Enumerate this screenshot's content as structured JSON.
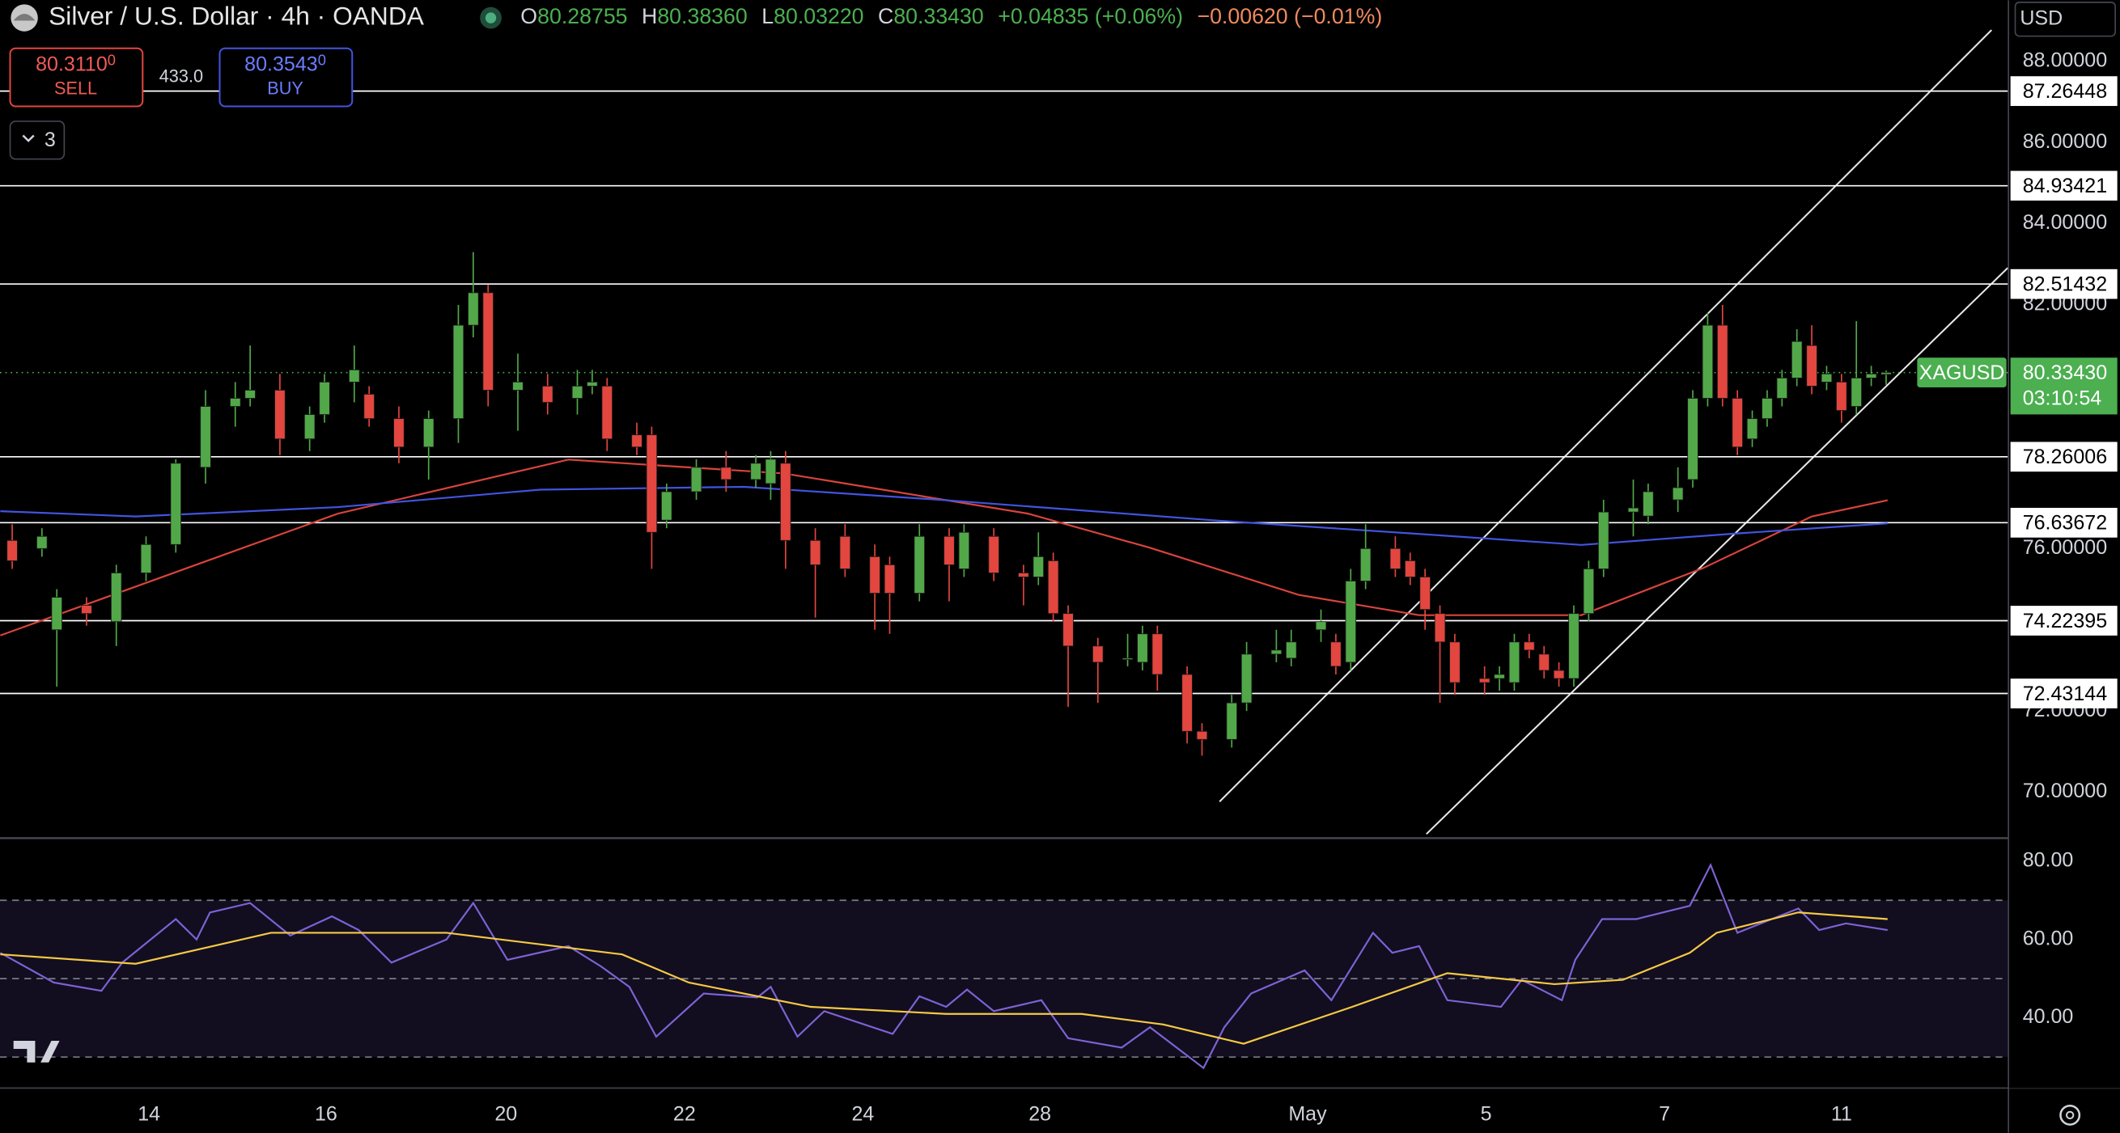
{
  "header": {
    "symbol": "Silver / U.S. Dollar · 4h · OANDA",
    "open_label": "O",
    "open": "80.28755",
    "high_label": "H",
    "high": "80.38360",
    "low_label": "L",
    "low": "80.03220",
    "close_label": "C",
    "close": "80.33430",
    "change": "+0.04835 (+0.06%)",
    "change2": "−0.00620 (−0.01%)"
  },
  "trade": {
    "sell_price": "80.3110",
    "sell_price_small": "0",
    "sell_label": "SELL",
    "spread": "433.0",
    "buy_price": "80.3543",
    "buy_price_small": "0",
    "buy_label": "BUY"
  },
  "indicators_count": "3",
  "currency": "USD",
  "chart_data": [
    {
      "type": "candlestick",
      "x": [
        0,
        2,
        3,
        5,
        7,
        9,
        11,
        13,
        15,
        16,
        18,
        20,
        21,
        23,
        24,
        26,
        28,
        30,
        31,
        32,
        34,
        36,
        38,
        39,
        40,
        42,
        43,
        44,
        46,
        48,
        50,
        51,
        52,
        54,
        56,
        58,
        59,
        61,
        63,
        64,
        66,
        68,
        69,
        70,
        71,
        73,
        75,
        76,
        77,
        79,
        80,
        82,
        83,
        85,
        86,
        88,
        89,
        90,
        91,
        93,
        94,
        95,
        96,
        97,
        99,
        100,
        101,
        102,
        103,
        104,
        105,
        106,
        107,
        109,
        110,
        112,
        113,
        114,
        115,
        116,
        117,
        118,
        119,
        120,
        121,
        122,
        123,
        124,
        125,
        126
      ],
      "open": [
        76.2,
        76.0,
        74.0,
        74.6,
        74.2,
        75.4,
        76.1,
        78.0,
        79.5,
        79.7,
        79.9,
        78.7,
        79.3,
        80.1,
        79.8,
        79.2,
        78.5,
        79.2,
        81.5,
        82.3,
        79.9,
        80.0,
        79.7,
        80.0,
        80.0,
        78.8,
        78.8,
        76.7,
        77.4,
        78.0,
        77.7,
        77.6,
        78.1,
        76.2,
        76.3,
        75.8,
        75.6,
        74.9,
        76.3,
        75.5,
        76.3,
        75.4,
        75.3,
        75.7,
        74.4,
        73.6,
        73.3,
        73.2,
        73.9,
        72.9,
        71.5,
        71.3,
        72.2,
        73.4,
        73.3,
        74.0,
        73.7,
        73.2,
        75.2,
        76.0,
        75.7,
        75.3,
        74.4,
        73.7,
        72.8,
        72.8,
        72.7,
        73.7,
        73.4,
        73.0,
        72.8,
        74.4,
        75.5,
        76.9,
        76.8,
        77.2,
        77.7,
        79.7,
        81.5,
        79.7,
        78.7,
        79.2,
        79.7,
        80.2,
        81.0,
        80.1,
        80.1,
        79.5,
        80.2,
        80.28755
      ],
      "high": [
        76.6,
        76.5,
        75.0,
        74.8,
        75.6,
        76.3,
        78.2,
        79.9,
        80.1,
        81.0,
        80.3,
        79.5,
        80.3,
        81.0,
        80.0,
        79.5,
        79.4,
        82.0,
        83.3,
        82.5,
        80.8,
        80.3,
        80.4,
        80.4,
        80.2,
        79.1,
        79.0,
        77.6,
        78.2,
        78.4,
        78.3,
        78.4,
        78.4,
        76.5,
        76.6,
        76.1,
        75.8,
        76.6,
        76.5,
        76.6,
        76.5,
        75.6,
        76.4,
        75.9,
        74.6,
        73.8,
        73.9,
        74.1,
        74.1,
        73.1,
        71.7,
        72.4,
        73.7,
        74.0,
        74.0,
        74.5,
        73.9,
        75.5,
        76.6,
        76.3,
        75.9,
        75.5,
        74.6,
        73.9,
        73.1,
        73.1,
        73.9,
        73.9,
        73.6,
        73.2,
        74.6,
        75.7,
        77.2,
        77.7,
        77.6,
        78.0,
        79.9,
        81.8,
        82.0,
        79.9,
        79.4,
        79.9,
        80.4,
        81.4,
        81.5,
        80.5,
        80.3,
        81.6,
        80.5,
        80.3836
      ],
      "low": [
        75.5,
        75.8,
        72.6,
        74.1,
        73.6,
        75.2,
        75.9,
        77.6,
        79.0,
        79.5,
        78.3,
        78.4,
        79.1,
        79.6,
        79.0,
        78.1,
        77.7,
        78.6,
        81.2,
        79.5,
        78.9,
        79.3,
        79.3,
        79.8,
        78.4,
        78.3,
        75.5,
        76.5,
        77.2,
        77.4,
        77.5,
        77.2,
        75.5,
        74.3,
        75.3,
        74.0,
        73.9,
        74.7,
        74.7,
        75.3,
        75.2,
        74.6,
        75.1,
        74.2,
        72.1,
        72.2,
        73.1,
        73.0,
        72.5,
        71.2,
        70.9,
        71.1,
        72.0,
        73.2,
        73.1,
        73.7,
        72.9,
        73.0,
        75.0,
        75.3,
        75.1,
        74.0,
        72.2,
        72.4,
        72.4,
        72.5,
        72.5,
        73.3,
        72.8,
        72.6,
        72.6,
        74.2,
        75.3,
        76.3,
        76.6,
        76.9,
        77.5,
        79.5,
        79.5,
        78.3,
        78.5,
        79.0,
        79.5,
        80.0,
        79.8,
        79.9,
        79.1,
        79.3,
        80.0,
        80.0322
      ],
      "close": [
        75.7,
        76.3,
        74.8,
        74.4,
        75.4,
        76.1,
        78.1,
        79.5,
        79.7,
        79.9,
        78.7,
        79.3,
        80.1,
        80.4,
        79.2,
        78.5,
        79.2,
        81.5,
        82.3,
        79.9,
        80.1,
        79.6,
        80.0,
        80.1,
        78.7,
        78.5,
        76.4,
        77.4,
        78.0,
        77.7,
        78.1,
        78.2,
        76.2,
        75.6,
        75.5,
        74.9,
        74.9,
        76.3,
        75.6,
        76.4,
        75.4,
        75.3,
        75.8,
        74.4,
        73.6,
        73.2,
        73.3,
        73.9,
        72.9,
        71.5,
        71.3,
        72.2,
        73.4,
        73.5,
        73.7,
        74.2,
        73.1,
        75.2,
        76.0,
        75.5,
        75.3,
        74.5,
        73.7,
        72.7,
        72.7,
        72.9,
        73.7,
        73.5,
        73.0,
        72.8,
        74.4,
        75.5,
        76.9,
        77.0,
        77.4,
        77.5,
        79.7,
        81.5,
        79.7,
        78.5,
        79.2,
        79.7,
        80.2,
        81.1,
        80.0,
        80.3,
        79.4,
        80.2,
        80.3,
        80.3343
      ],
      "up_color": "#52a849",
      "down_color": "#e2463f",
      "series": [
        {
          "color": "#d9443c",
          "x": [
            -0.8,
            21.9,
            37.4,
            44.6,
            51.9,
            68.3,
            76.5,
            86.5,
            94.6,
            105.5,
            113.7,
            121,
            126.1
          ],
          "values": [
            73.86,
            76.86,
            78.19,
            78.02,
            77.85,
            76.86,
            76.02,
            74.86,
            74.36,
            74.36,
            75.52,
            76.79,
            77.19
          ]
        },
        {
          "color": "#4254e0",
          "x": [
            -0.8,
            8.3,
            21.9,
            35.5,
            49.2,
            62.8,
            81,
            94.6,
            105.5,
            115.5,
            126.1
          ],
          "values": [
            76.92,
            76.79,
            77.02,
            77.45,
            77.52,
            77.19,
            76.69,
            76.36,
            76.09,
            76.36,
            76.62
          ]
        }
      ],
      "xlim": [
        -0.82,
        134.18
      ],
      "ylim": [
        68.87,
        89.5
      ],
      "yticks": [
        {
          "value": 88,
          "label": "88.00000"
        },
        {
          "value": 86,
          "label": "86.00000"
        },
        {
          "value": 84,
          "label": "84.00000"
        },
        {
          "value": 82,
          "label": "82.00000"
        },
        {
          "value": 76,
          "label": "76.00000"
        },
        {
          "value": 72,
          "label": "72.00000"
        },
        {
          "value": 70,
          "label": "70.00000"
        }
      ],
      "xticks": [
        {
          "value": 9.2,
          "label": "14"
        },
        {
          "value": 21.1,
          "label": "16"
        },
        {
          "value": 33.2,
          "label": "20"
        },
        {
          "value": 45.2,
          "label": "22"
        },
        {
          "value": 57.2,
          "label": "24"
        },
        {
          "value": 69.1,
          "label": "28"
        },
        {
          "value": 87.1,
          "label": "May"
        },
        {
          "value": 99.1,
          "label": "5"
        },
        {
          "value": 111.1,
          "label": "7"
        },
        {
          "value": 123,
          "label": "11"
        }
      ],
      "levels": [
        87.26448,
        84.93421,
        82.51432,
        78.26006,
        76.63672,
        74.22395,
        72.43144
      ],
      "level_color": "#ffffff",
      "symbol_label": "XAGUSD",
      "last_price": {
        "value": 80.3343,
        "label": "80.33430"
      },
      "countdown": "03:10:54",
      "last_color": "#4caf50"
    },
    {
      "type": "line",
      "series": [
        {
          "color": "#7e62d6",
          "x": [
            -0.8,
            2.8,
            6,
            7.4,
            11,
            12.4,
            13.3,
            16,
            18.7,
            21.5,
            23.3,
            25.5,
            29.2,
            31,
            33.3,
            37.4,
            39.6,
            41.5,
            43.3,
            46.5,
            50.1,
            51,
            52.8,
            54.6,
            59.2,
            61,
            62.8,
            64.2,
            66,
            69.2,
            71,
            74.6,
            76.5,
            80.1,
            81.5,
            83.3,
            86.9,
            88.7,
            91.5,
            92.8,
            94.6,
            96.5,
            100.1,
            101.5,
            104.2,
            105.1,
            106.9,
            109.2,
            112.8,
            114.2,
            116,
            120.1,
            121.5,
            123.3,
            126.1
          ],
          "values": [
            56.6,
            49.0,
            46.9,
            54.1,
            65.2,
            60.0,
            66.9,
            69.3,
            61.0,
            65.9,
            62.4,
            54.1,
            60.0,
            69.3,
            54.8,
            58.3,
            53.1,
            47.9,
            35.2,
            46.2,
            45.2,
            47.9,
            35.2,
            41.7,
            35.9,
            45.5,
            42.8,
            47.2,
            41.7,
            44.5,
            34.8,
            32.4,
            37.6,
            27.2,
            37.6,
            46.2,
            52.1,
            44.5,
            61.7,
            56.6,
            58.3,
            44.5,
            42.8,
            49.7,
            44.5,
            54.8,
            65.2,
            65.2,
            68.6,
            79.0,
            61.7,
            67.9,
            62.4,
            64.1,
            62.4
          ]
        },
        {
          "color": "#f5c945",
          "x": [
            -0.8,
            8.3,
            17.4,
            29.2,
            41,
            45.5,
            53.7,
            62.8,
            71.9,
            77.4,
            82.8,
            90.1,
            96.5,
            103.7,
            108.3,
            112.8,
            114.6,
            120.1,
            126.1
          ],
          "values": [
            56.2,
            53.8,
            61.7,
            61.7,
            56.2,
            49.0,
            42.8,
            41.0,
            41.0,
            38.3,
            33.4,
            42.8,
            51.4,
            48.6,
            49.7,
            56.6,
            61.7,
            66.9,
            65.2
          ]
        }
      ],
      "ylim": [
        22.07,
        85.52
      ],
      "yticks": [
        {
          "value": 80,
          "label": "80.00"
        },
        {
          "value": 60,
          "label": "60.00"
        },
        {
          "value": 40,
          "label": "40.00"
        }
      ],
      "bands": [
        70,
        50,
        30
      ],
      "band_fill": "#120e1f"
    }
  ]
}
